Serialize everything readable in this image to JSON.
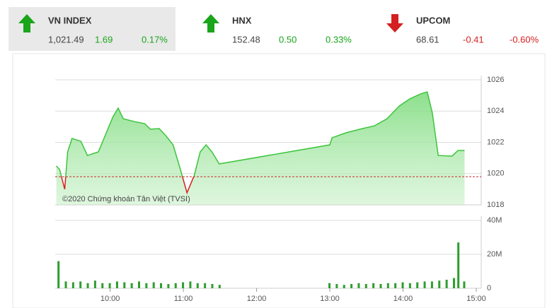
{
  "indices": [
    {
      "name": "VN INDEX",
      "value": "1,021.49",
      "change": "1.69",
      "percent": "0.17%",
      "trend": "up",
      "color": "#1aa51a",
      "selected": true
    },
    {
      "name": "HNX",
      "value": "152.48",
      "change": "0.50",
      "percent": "0.33%",
      "trend": "up",
      "color": "#1aa51a",
      "selected": false
    },
    {
      "name": "UPCOM",
      "value": "68.61",
      "change": "-0.41",
      "percent": "-0.60%",
      "trend": "down",
      "color": "#d42020",
      "selected": false
    }
  ],
  "chart_data": [
    {
      "type": "line",
      "annotation": "©2020 Chứng khoán Tân Việt (TVSI)",
      "x": [
        9.265,
        9.31,
        9.38,
        9.42,
        9.48,
        9.6,
        9.69,
        9.84,
        9.94,
        10.04,
        10.11,
        10.18,
        10.33,
        10.47,
        10.55,
        10.67,
        10.76,
        10.86,
        10.96,
        11.05,
        11.15,
        11.23,
        11.31,
        11.39,
        11.49,
        13.0,
        13.03,
        13.22,
        13.41,
        13.61,
        13.78,
        13.95,
        14.09,
        14.24,
        14.33,
        14.4,
        14.48,
        14.67,
        14.75,
        14.84
      ],
      "values": [
        1020.49,
        1020.26,
        1019.0,
        1021.39,
        1022.25,
        1022.07,
        1021.16,
        1021.39,
        1022.52,
        1023.65,
        1024.19,
        1023.51,
        1023.33,
        1023.2,
        1022.84,
        1022.88,
        1022.43,
        1021.84,
        1020.26,
        1018.77,
        1019.9,
        1021.39,
        1021.84,
        1021.39,
        1020.62,
        1021.84,
        1022.29,
        1022.61,
        1022.84,
        1023.06,
        1023.51,
        1024.33,
        1024.78,
        1025.1,
        1025.23,
        1023.88,
        1021.16,
        1021.12,
        1021.48,
        1021.48
      ],
      "reference": 1019.8,
      "color": "#3cc43c",
      "down_color": "#d42020",
      "ref_color": "#c62828",
      "xlim": [
        9.25,
        15
      ],
      "ylim": [
        1018,
        1026
      ],
      "yticks": [
        1018,
        1020,
        1022,
        1024,
        1026
      ],
      "grid": true
    },
    {
      "type": "bar",
      "color": "#2e9e2e",
      "x": [
        9.3,
        9.4,
        9.5,
        9.6,
        9.7,
        9.8,
        9.9,
        10.0,
        10.1,
        10.2,
        10.3,
        10.4,
        10.5,
        10.6,
        10.7,
        10.8,
        10.9,
        11.0,
        11.1,
        11.2,
        11.3,
        11.4,
        11.5,
        13.0,
        13.1,
        13.2,
        13.3,
        13.4,
        13.5,
        13.6,
        13.7,
        13.8,
        13.9,
        14.0,
        14.1,
        14.2,
        14.3,
        14.4,
        14.5,
        14.6,
        14.7,
        14.76,
        14.84
      ],
      "values": [
        16,
        4,
        3.5,
        4,
        3,
        4.5,
        3,
        3,
        4,
        3.5,
        3,
        4,
        3,
        3.5,
        3,
        2.5,
        3,
        3.5,
        4,
        3,
        3,
        2.5,
        2,
        3,
        2.5,
        2,
        2.5,
        3,
        2.5,
        3,
        2.5,
        3,
        3,
        3.5,
        3,
        3.5,
        4,
        4,
        4.5,
        5,
        6,
        27,
        4
      ],
      "xlim": [
        9.25,
        15
      ],
      "ylim": [
        0,
        40
      ],
      "yticks": [
        0,
        {
          "value": 20,
          "label": "20M"
        },
        {
          "value": 40,
          "label": "40M"
        }
      ],
      "grid": true,
      "xticks": [
        {
          "value": 10,
          "label": "10:00"
        },
        {
          "value": 11,
          "label": "11:00"
        },
        {
          "value": 12,
          "label": "12:00"
        },
        {
          "value": 13,
          "label": "13:00"
        },
        {
          "value": 14,
          "label": "14:00"
        },
        {
          "value": 15,
          "label": "15:00"
        }
      ]
    }
  ]
}
